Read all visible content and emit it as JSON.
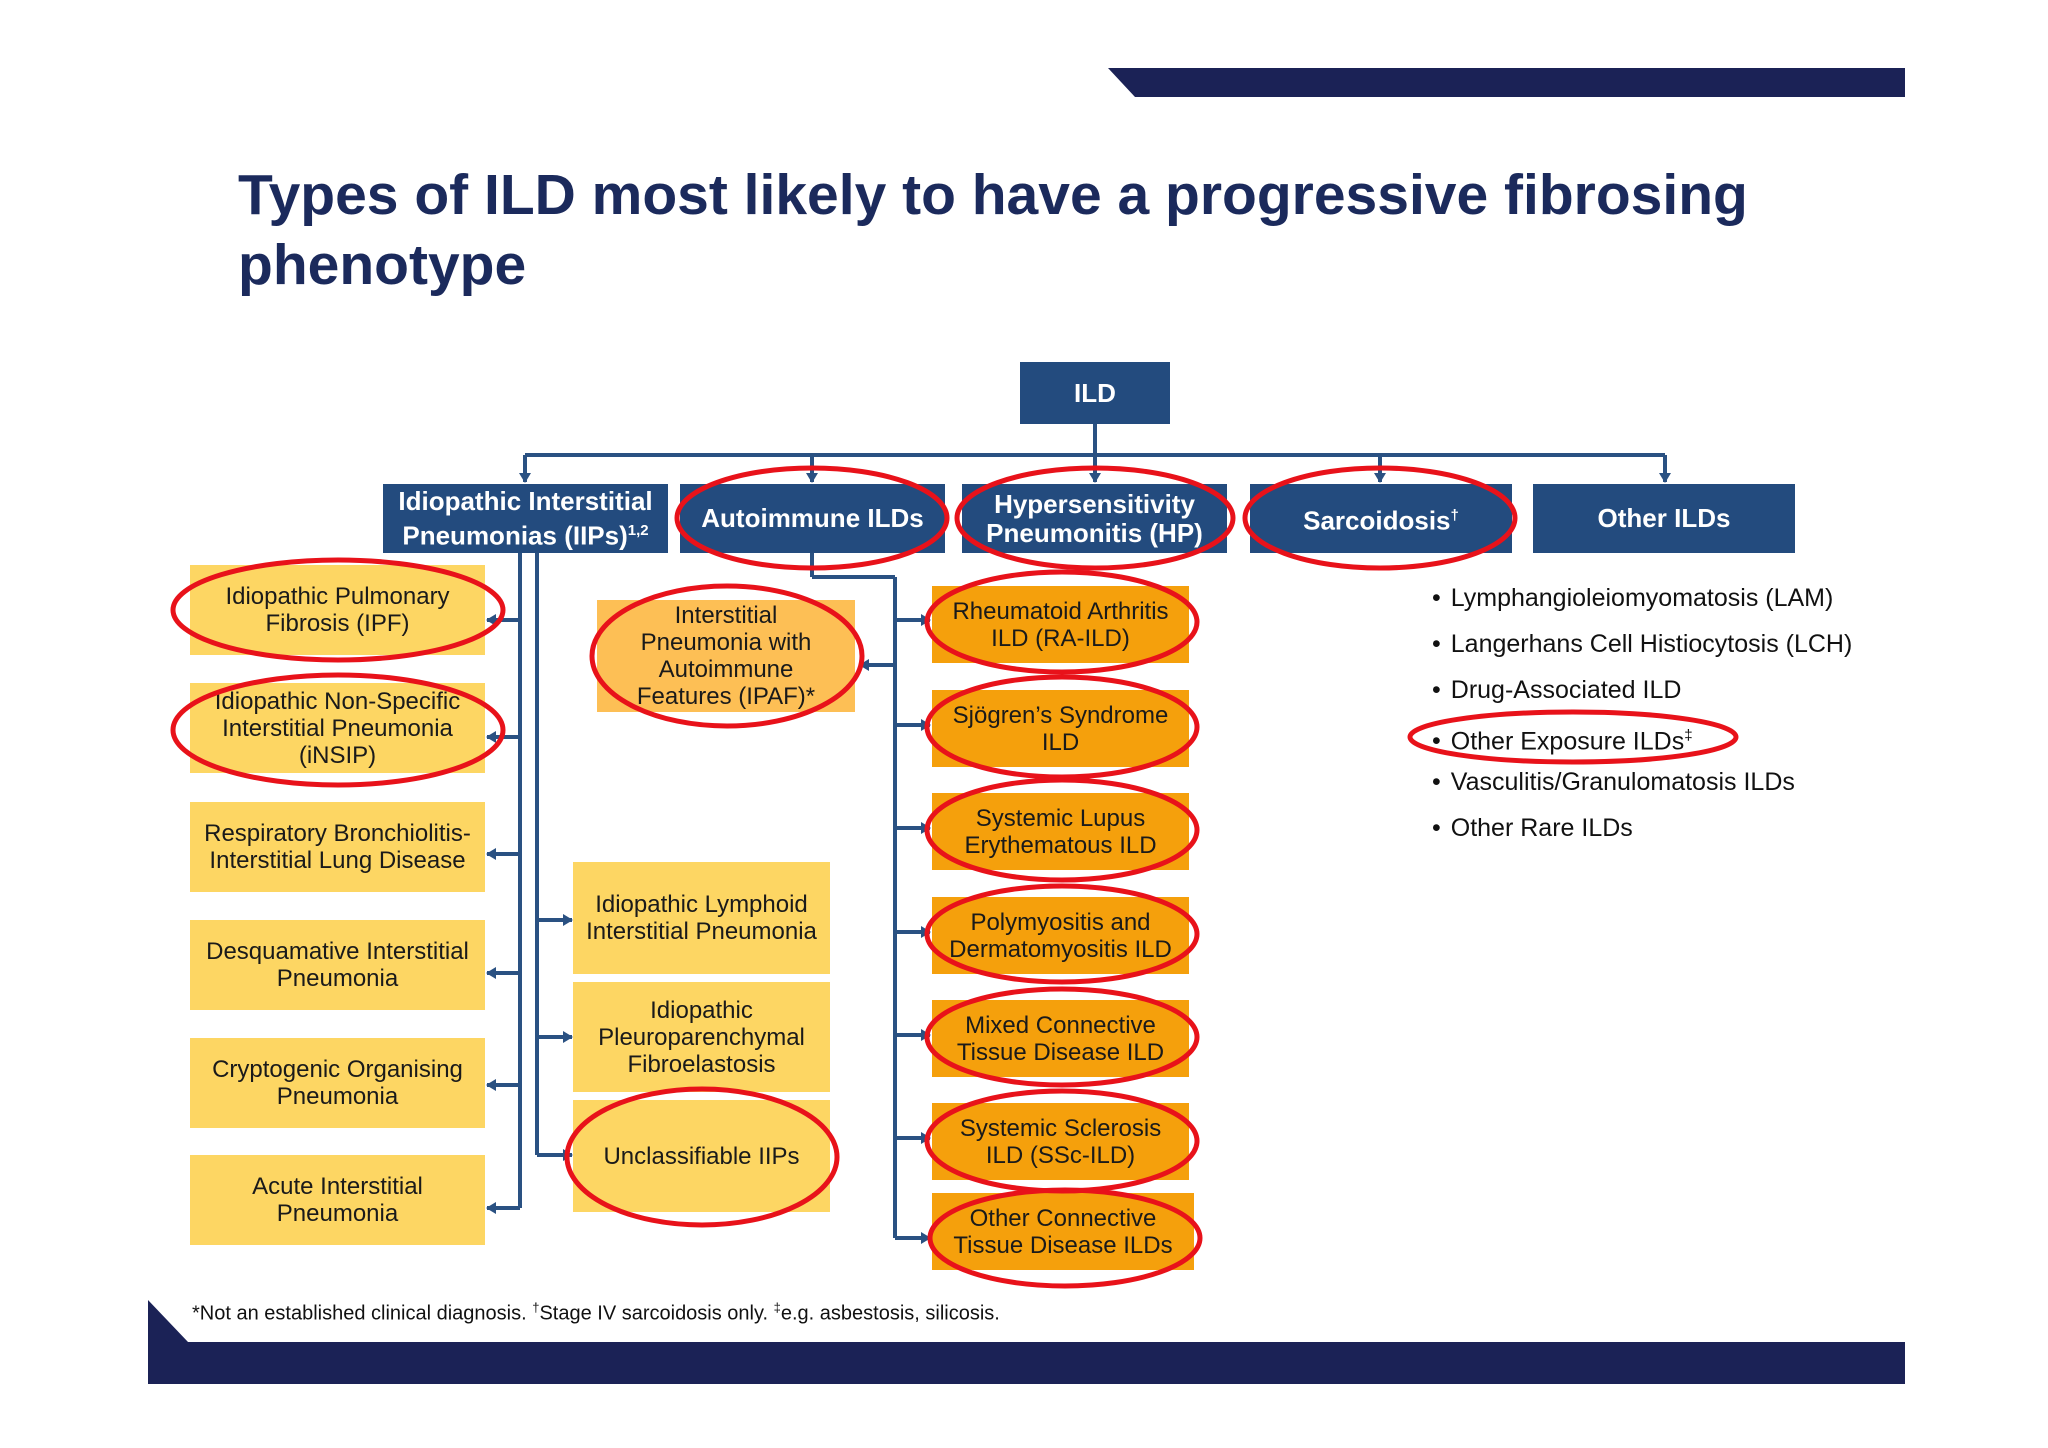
{
  "title": "Types of ILD most likely to have a progressive fibrosing phenotype",
  "colors": {
    "navy": "#1b2256",
    "box_navy": "#234b7e",
    "connector": "#2a5182",
    "yellow": "#fdd663",
    "light_orange": "#fdbf55",
    "orange": "#f5a00c",
    "highlight_ring": "#e8121a"
  },
  "root": {
    "label": "ILD"
  },
  "categories": {
    "iips": {
      "label": "Idiopathic Interstitial Pneumonias (IIPs)",
      "sup": "1,2"
    },
    "autoimmune": {
      "label": "Autoimmune ILDs"
    },
    "hp": {
      "label": "Hypersensitivity Pneumonitis (HP)"
    },
    "sarcoidosis": {
      "label": "Sarcoidosis",
      "sup": "†"
    },
    "other": {
      "label": "Other ILDs"
    }
  },
  "iip_left": [
    {
      "label": "Idiopathic Pulmonary Fibrosis (IPF)"
    },
    {
      "label": "Idiopathic Non-Specific Interstitial Pneumonia (iNSIP)"
    },
    {
      "label": "Respiratory Bronchiolitis- Interstitial Lung Disease"
    },
    {
      "label": "Desquamative Interstitial Pneumonia"
    },
    {
      "label": "Cryptogenic Organising Pneumonia"
    },
    {
      "label": "Acute Interstitial Pneumonia"
    }
  ],
  "iip_right": [
    {
      "label": "Idiopathic Lymphoid Interstitial Pneumonia"
    },
    {
      "label": "Idiopathic Pleuroparenchymal Fibroelastosis"
    },
    {
      "label": "Unclassifiable IIPs"
    }
  ],
  "ipaf": {
    "label": "Interstitial Pneumonia with Autoimmune Features (IPAF)*"
  },
  "autoimmune_items": [
    {
      "label": "Rheumatoid Arthritis ILD (RA-ILD)"
    },
    {
      "label": "Sjögren’s Syndrome ILD"
    },
    {
      "label": "Systemic Lupus Erythematous ILD"
    },
    {
      "label": "Polymyositis and Dermatomyositis ILD"
    },
    {
      "label": "Mixed Connective Tissue Disease ILD"
    },
    {
      "label": "Systemic Sclerosis ILD (SSc-ILD)"
    },
    {
      "label": "Other Connective Tissue Disease ILDs"
    }
  ],
  "other_items": [
    {
      "label": "Lymphangioleiomyomatosis (LAM)"
    },
    {
      "label": "Langerhans Cell Histiocytosis (LCH)"
    },
    {
      "label": "Drug-Associated ILD"
    },
    {
      "label": "Other Exposure ILDs",
      "sup": "‡"
    },
    {
      "label": "Vasculitis/Granulomatosis ILDs"
    },
    {
      "label": "Other Rare ILDs"
    }
  ],
  "footnote": {
    "part1": "*Not an established clinical diagnosis. ",
    "mark2": "†",
    "part2": "Stage IV sarcoidosis only. ",
    "mark3": "‡",
    "part3": "e.g. asbestosis, silicosis."
  }
}
